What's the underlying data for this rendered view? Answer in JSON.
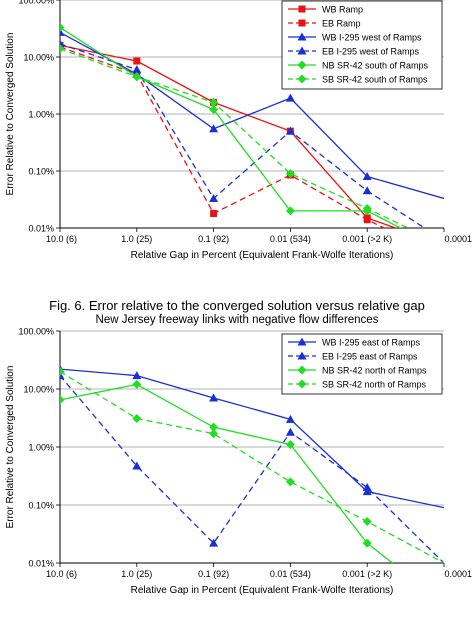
{
  "figure_caption": {
    "title": "Fig. 6. Error relative to the converged solution versus relative gap",
    "subtitle": "New Jersey freeway links with negative flow differences"
  },
  "chart_data": [
    {
      "type": "line",
      "xlabel": "Relative Gap in Percent (Equivalent Frank-Wolfe Iterations)",
      "ylabel": "Error Relative to Converged Solution",
      "x_categories": [
        "10.0 (6)",
        "1.0 (25)",
        "0.1 (92)",
        "0.01 (534)",
        "0.001 (>2 K)",
        "0.0001"
      ],
      "yscale": "log",
      "ylim": [
        0.0001,
        1
      ],
      "y_ticks": [
        {
          "value": 1,
          "label": "100.00%"
        },
        {
          "value": 0.1,
          "label": "10.00%"
        },
        {
          "value": 0.01,
          "label": "1.00%"
        },
        {
          "value": 0.001,
          "label": "0.10%"
        },
        {
          "value": 0.0001,
          "label": "0.01%"
        }
      ],
      "grid": "horizontal",
      "legend_position": "top-right",
      "series": [
        {
          "name": "WB Ramp",
          "color": "#ee1111",
          "dash": "solid",
          "marker": "square",
          "values": [
            0.16,
            0.085,
            0.016,
            0.005,
            0.00015,
            5e-05
          ]
        },
        {
          "name": "EB Ramp",
          "color": "#ee1111",
          "dash": "dashed",
          "marker": "square",
          "values": [
            0.15,
            0.05,
            0.00018,
            0.00085,
            0.00014,
            3e-05
          ]
        },
        {
          "name": "WB I-295 west of Ramps",
          "color": "#1a2fd6",
          "dash": "solid",
          "marker": "triangle",
          "values": [
            0.27,
            0.05,
            0.0055,
            0.019,
            0.0008,
            0.00033
          ]
        },
        {
          "name": "EB  I-295 west of Ramps",
          "color": "#1a2fd6",
          "dash": "dashed",
          "marker": "triangle",
          "values": [
            0.17,
            0.06,
            0.00033,
            0.005,
            0.00045,
            6e-05
          ]
        },
        {
          "name": "NB SR-42 south of Ramps",
          "color": "#22dd22",
          "dash": "solid",
          "marker": "diamond",
          "values": [
            0.33,
            0.045,
            0.012,
            0.0002,
            0.0002,
            4e-05
          ]
        },
        {
          "name": "SB SR-42 south of Ramps",
          "color": "#22dd22",
          "dash": "dashed",
          "marker": "diamond",
          "values": [
            0.14,
            0.045,
            0.016,
            0.0009,
            0.00022,
            5e-05
          ]
        }
      ]
    },
    {
      "type": "line",
      "xlabel": "Relative Gap in Percent (Equivalent Frank-Wolfe Iterations)",
      "ylabel": "Error Relative to Converged Solution",
      "x_categories": [
        "10.0 (6)",
        "1.0 (25)",
        "0.1 (92)",
        "0.01 (534)",
        "0.001 (>2 K)",
        "0.0001"
      ],
      "yscale": "log",
      "ylim": [
        0.0001,
        1
      ],
      "y_ticks": [
        {
          "value": 1,
          "label": "100.00%"
        },
        {
          "value": 0.1,
          "label": "10.00%"
        },
        {
          "value": 0.01,
          "label": "1.00%"
        },
        {
          "value": 0.001,
          "label": "0.10%"
        },
        {
          "value": 0.0001,
          "label": "0.01%"
        }
      ],
      "grid": "horizontal",
      "legend_position": "top-right",
      "series": [
        {
          "name": "WB I-295 east of Ramps",
          "color": "#1a2fd6",
          "dash": "solid",
          "marker": "triangle",
          "values": [
            0.22,
            0.17,
            0.07,
            0.03,
            0.0017,
            0.0009
          ]
        },
        {
          "name": "EB  I-295 east of Ramps",
          "color": "#1a2fd6",
          "dash": "dashed",
          "marker": "triangle",
          "values": [
            0.17,
            0.0047,
            0.00022,
            0.018,
            0.002,
            0.0001
          ]
        },
        {
          "name": "NB SR-42 north of Ramps",
          "color": "#22dd22",
          "dash": "solid",
          "marker": "diamond",
          "values": [
            0.065,
            0.12,
            0.022,
            0.011,
            0.00022,
            2e-05
          ]
        },
        {
          "name": "SB SR-42 north of Ramps",
          "color": "#22dd22",
          "dash": "dashed",
          "marker": "diamond",
          "values": [
            0.2,
            0.031,
            0.017,
            0.0025,
            0.00052,
            0.0001
          ]
        }
      ]
    }
  ]
}
